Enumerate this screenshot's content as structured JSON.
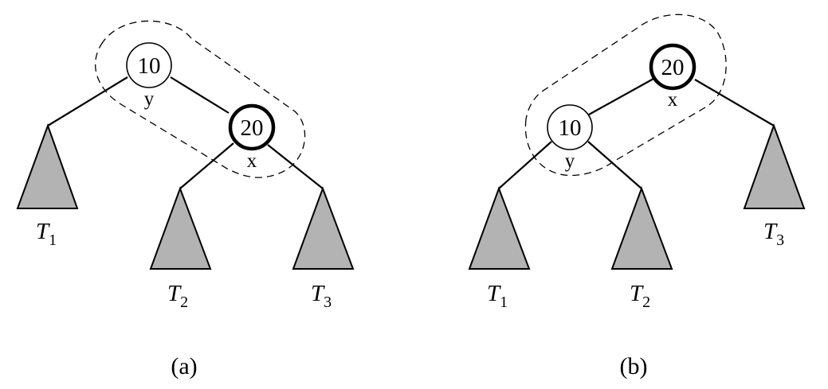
{
  "panels": [
    {
      "caption": "(a)",
      "nodes": [
        {
          "key": "10",
          "label": "y",
          "emphasis": "thin"
        },
        {
          "key": "20",
          "label": "x",
          "emphasis": "thick"
        }
      ],
      "subtrees": [
        {
          "name": "T",
          "sub": "1"
        },
        {
          "name": "T",
          "sub": "2"
        },
        {
          "name": "T",
          "sub": "3"
        }
      ]
    },
    {
      "caption": "(b)",
      "nodes": [
        {
          "key": "20",
          "label": "x",
          "emphasis": "thick"
        },
        {
          "key": "10",
          "label": "y",
          "emphasis": "thin"
        }
      ],
      "subtrees": [
        {
          "name": "T",
          "sub": "1"
        },
        {
          "name": "T",
          "sub": "2"
        },
        {
          "name": "T",
          "sub": "3"
        }
      ]
    }
  ],
  "colors": {
    "subtree_fill": "#b3b3b3",
    "stroke": "#000000",
    "background": "#ffffff"
  }
}
